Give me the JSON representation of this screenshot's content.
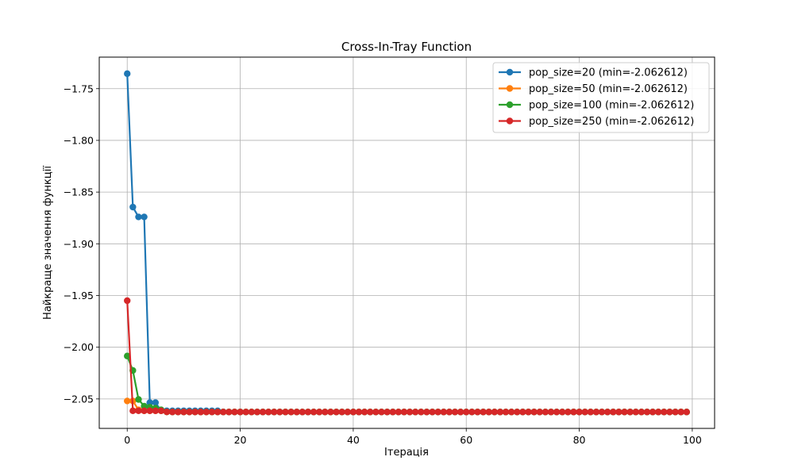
{
  "chart_data": {
    "type": "line",
    "title": "Cross-In-Tray Function",
    "xlabel": "Ітерація",
    "ylabel": "Найкраще значення функції",
    "xlim": [
      -4.95,
      103.95
    ],
    "ylim": [
      -2.0785,
      -1.7195
    ],
    "xticks": [
      0,
      20,
      40,
      60,
      80,
      100
    ],
    "xtick_labels": [
      "0",
      "20",
      "40",
      "60",
      "80",
      "100"
    ],
    "yticks": [
      -1.75,
      -1.8,
      -1.85,
      -1.9,
      -1.95,
      -2.0,
      -2.05
    ],
    "ytick_labels": [
      "−1.75",
      "−1.80",
      "−1.85",
      "−1.90",
      "−1.95",
      "−2.00",
      "−2.05"
    ],
    "grid": true,
    "legend_position": "top-right",
    "final_value": -2.062612,
    "series": [
      {
        "name": "pop_size=20 (min=-2.062612)",
        "color": "#1f77b4",
        "head": [
          -1.7355,
          -1.8645,
          -1.874,
          -1.874,
          -2.0535,
          -2.0535,
          -2.0615,
          -2.0615,
          -2.0615,
          -2.0615,
          -2.0615,
          -2.0615,
          -2.0615,
          -2.0615,
          -2.0615,
          -2.0615,
          -2.0615,
          -2.0625
        ]
      },
      {
        "name": "pop_size=50 (min=-2.062612)",
        "color": "#ff7f0e",
        "head": [
          -2.052,
          -2.052,
          -2.0605,
          -2.0615,
          -2.0615,
          -2.0615,
          -2.0615,
          -2.0625
        ]
      },
      {
        "name": "pop_size=100 (min=-2.062612)",
        "color": "#2ca02c",
        "head": [
          -2.0085,
          -2.0225,
          -2.0505,
          -2.057,
          -2.058,
          -2.059,
          -2.0605,
          -2.0625
        ]
      },
      {
        "name": "pop_size=250 (min=-2.062612)",
        "color": "#d62728",
        "head": [
          -1.955,
          -2.0615,
          -2.0615,
          -2.0615,
          -2.0615,
          -2.0615,
          -2.0615,
          -2.0625
        ]
      }
    ],
    "n_points": 100
  }
}
